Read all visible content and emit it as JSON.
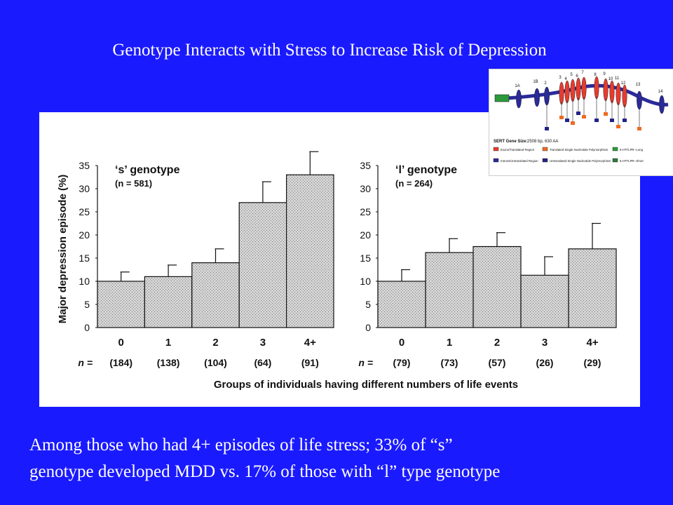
{
  "slide": {
    "title": "Genotype Interacts with Stress to Increase Risk of Depression",
    "caption_line1": "Among those who had 4+ episodes of life stress; 33% of “s”",
    "caption_line2": "genotype developed MDD vs. 17% of those with “l” type genotype"
  },
  "figure": {
    "ylabel": "Major depression episode (%)",
    "xlabel": "Groups of individuals having different numbers of life events",
    "n_prefix": "n ="
  },
  "colors": {
    "background": "#1a1aff",
    "bar_fill": "#c8c8c8",
    "text": "#ffffff"
  },
  "chart_data": [
    {
      "type": "bar",
      "title": "‘s’ genotype",
      "subtitle": "(n = 581)",
      "categories": [
        "0",
        "1",
        "2",
        "3",
        "4+"
      ],
      "values": [
        10,
        11,
        14,
        27,
        33
      ],
      "errors": [
        2,
        2.5,
        3,
        4.5,
        5
      ],
      "n_labels": [
        "(184)",
        "(138)",
        "(104)",
        "(64)",
        "(91)"
      ],
      "yticks": [
        "0",
        "5",
        "10",
        "15",
        "20",
        "25",
        "30",
        "35"
      ],
      "ylim": [
        0,
        35
      ]
    },
    {
      "type": "bar",
      "title": "‘l’ genotype",
      "subtitle": "(n = 264)",
      "categories": [
        "0",
        "1",
        "2",
        "3",
        "4+"
      ],
      "values": [
        10,
        16.2,
        17.5,
        11.3,
        17
      ],
      "errors": [
        2.5,
        3,
        3,
        4,
        5.5
      ],
      "n_labels": [
        "(79)",
        "(73)",
        "(57)",
        "(26)",
        "(29)"
      ],
      "yticks": [
        "0",
        "5",
        "10",
        "15",
        "20",
        "25",
        "30",
        "35"
      ],
      "ylim": [
        0,
        35
      ]
    }
  ],
  "inset": {
    "exon_labels": [
      "1A",
      "1B",
      "2",
      "3",
      "4",
      "5",
      "6",
      "7",
      "8",
      "9",
      "10",
      "11",
      "12",
      "13",
      "14"
    ],
    "gene_size_label": "SERT Gene Size:",
    "gene_size_value": "2508 bp, 630 AA",
    "legend": [
      {
        "text": "Exons/Translated Region",
        "color": "#e83b2e"
      },
      {
        "text": "Translated Single Nucleotide Polymorphism",
        "color": "#ef6a20"
      },
      {
        "text": "5-HTTLPR--Long",
        "color": "#2b9a3a"
      },
      {
        "text": "Introns/Untranslated Region",
        "color": "#2a2a9a"
      },
      {
        "text": "Untranslated Single Nucleotide Polymorphism",
        "color": "#222288"
      },
      {
        "text": "5-HTTLPR--Short",
        "color": "#2b7a3a"
      }
    ]
  }
}
